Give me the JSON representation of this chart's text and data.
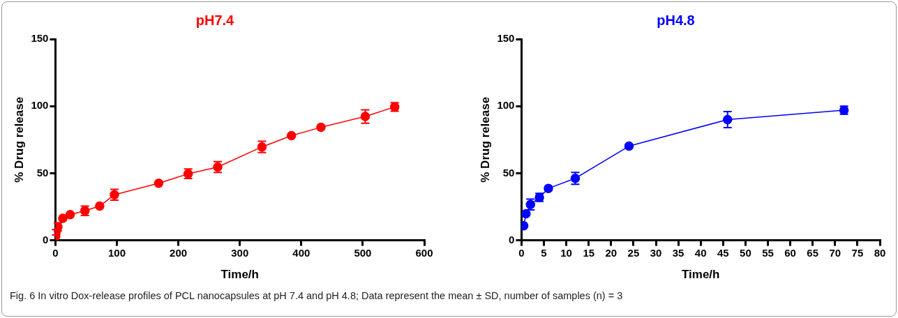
{
  "chart_data": [
    {
      "type": "line",
      "title": "pH7.4",
      "xlabel": "Time/h",
      "ylabel": "% Drug release",
      "x": [
        0.5,
        1,
        2,
        4,
        6,
        8,
        12,
        24,
        48,
        72,
        96,
        168,
        216,
        264,
        336,
        384,
        432,
        504,
        552
      ],
      "series": [
        {
          "color": "#ff0000",
          "values": [
            3,
            6,
            null,
            10,
            null,
            null,
            16.4,
            19.2,
            22,
            25.5,
            34,
            42.5,
            49.6,
            54.6,
            69.6,
            78,
            84.2,
            92.3,
            99.4
          ],
          "errors": [
            null,
            2,
            null,
            3,
            null,
            null,
            null,
            null,
            3.5,
            null,
            4,
            null,
            3.6,
            4,
            4.2,
            null,
            null,
            5,
            3.2
          ]
        }
      ],
      "xlim": [
        0,
        600
      ],
      "xticks": [
        0,
        100,
        200,
        300,
        400,
        500,
        600
      ],
      "ylim": [
        0,
        150
      ],
      "yticks": [
        0,
        50,
        100,
        150
      ],
      "grid": false,
      "legend": false,
      "marker": "circle",
      "line_style": "solid",
      "annotations": [
        "Fig. 6 In vitro Dox-release profiles of PCL nanocapsules at pH 7.4 and pH 4.8; Data represent the mean ± SD, number of samples (n) = 3"
      ]
    },
    {
      "type": "line",
      "title": "pH4.8",
      "xlabel": "Time/h",
      "ylabel": "% Drug release",
      "x": [
        0.5,
        1,
        2,
        4,
        6,
        12,
        24,
        46,
        72
      ],
      "series": [
        {
          "color": "#0000ff",
          "values": [
            10.8,
            19.8,
            26.7,
            32,
            38.7,
            46.2,
            70.2,
            90,
            97
          ],
          "errors": [
            null,
            null,
            4,
            3,
            null,
            4.4,
            null,
            6,
            3
          ]
        }
      ],
      "xlim": [
        0,
        80
      ],
      "xticks": [
        0,
        5,
        10,
        15,
        20,
        25,
        30,
        35,
        40,
        45,
        50,
        55,
        60,
        65,
        70,
        75,
        80
      ],
      "ylim": [
        0,
        150
      ],
      "yticks": [
        0,
        50,
        100,
        150
      ],
      "grid": false,
      "legend": false,
      "marker": "circle",
      "line_style": "solid"
    }
  ]
}
